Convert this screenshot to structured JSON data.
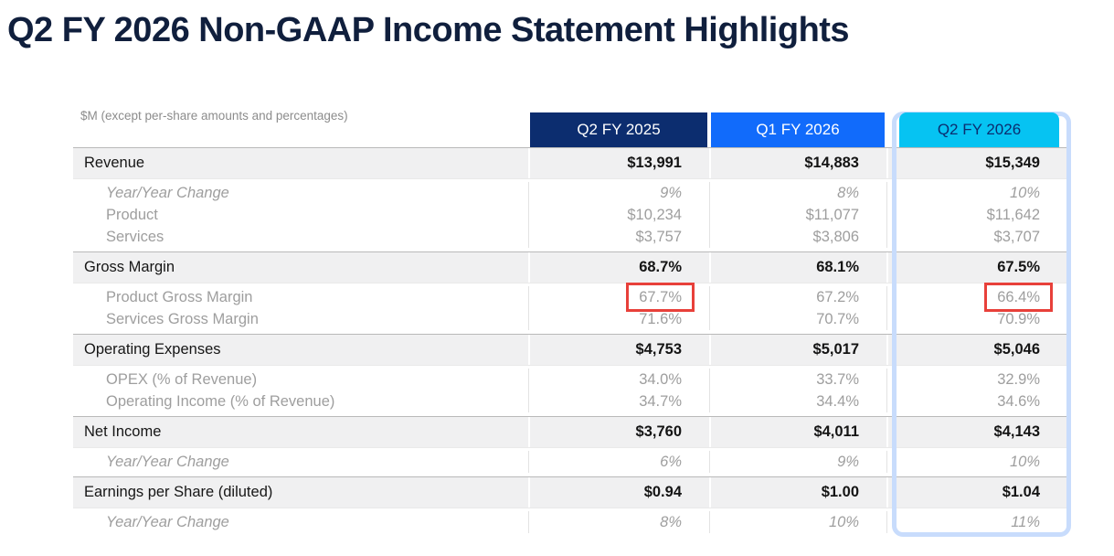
{
  "slide": {
    "title": "Q2 FY 2026 Non-GAAP Income Statement Highlights"
  },
  "table": {
    "units_note": "$M (except per-share amounts and percentages)",
    "columns": [
      {
        "label": "Q2 FY 2025",
        "highlighted": false
      },
      {
        "label": "Q1 FY 2026",
        "highlighted": false
      },
      {
        "label": "Q2 FY 2026",
        "highlighted": true
      }
    ],
    "rows": [
      {
        "type": "main",
        "label": "Revenue",
        "values": [
          "$13,991",
          "$14,883",
          "$15,349"
        ]
      },
      {
        "type": "sub",
        "lines": [
          {
            "label": "Year/Year Change",
            "style": "italic",
            "values": [
              "9%",
              "8%",
              "10%"
            ]
          },
          {
            "label": "Product",
            "values": [
              "$10,234",
              "$11,077",
              "$11,642"
            ]
          },
          {
            "label": "Services",
            "values": [
              "$3,757",
              "$3,806",
              "$3,707"
            ]
          }
        ]
      },
      {
        "type": "main",
        "label": "Gross Margin",
        "values": [
          "68.7%",
          "68.1%",
          "67.5%"
        ]
      },
      {
        "type": "sub",
        "lines": [
          {
            "label": "Product Gross Margin",
            "values": [
              "67.7%",
              "67.2%",
              "66.4%"
            ],
            "red_boxed_columns": [
              0,
              2
            ]
          },
          {
            "label": "Services Gross Margin",
            "values": [
              "71.6%",
              "70.7%",
              "70.9%"
            ]
          }
        ]
      },
      {
        "type": "main",
        "label": "Operating Expenses",
        "values": [
          "$4,753",
          "$5,017",
          "$5,046"
        ]
      },
      {
        "type": "sub",
        "lines": [
          {
            "label": "OPEX (% of Revenue)",
            "values": [
              "34.0%",
              "33.7%",
              "32.9%"
            ]
          },
          {
            "label": "Operating Income (% of Revenue)",
            "values": [
              "34.7%",
              "34.4%",
              "34.6%"
            ]
          }
        ]
      },
      {
        "type": "main",
        "label": "Net Income",
        "values": [
          "$3,760",
          "$4,011",
          "$4,143"
        ]
      },
      {
        "type": "sub",
        "lines": [
          {
            "label": "Year/Year Change",
            "style": "italic",
            "values": [
              "6%",
              "9%",
              "10%"
            ]
          }
        ]
      },
      {
        "type": "main",
        "label": "Earnings per Share (diluted)",
        "values": [
          "$0.94",
          "$1.00",
          "$1.04"
        ]
      },
      {
        "type": "sub",
        "lines": [
          {
            "label": "Year/Year Change",
            "style": "italic",
            "values": [
              "8%",
              "10%",
              "11%"
            ]
          }
        ]
      }
    ]
  },
  "annotations": {
    "red_boxes": [
      {
        "row": "Product Gross Margin",
        "column": "Q2 FY 2025",
        "value": "67.7%"
      },
      {
        "row": "Product Gross Margin",
        "column": "Q2 FY 2026",
        "value": "66.4%"
      }
    ]
  },
  "colors": {
    "title_text": "#101f3d",
    "header_q2_fy_2025_bg": "#0c2d6f",
    "header_q1_fy_2026_bg": "#116bfb",
    "header_q2_fy_2026_bg": "#06c3f2",
    "header_q2_fy_2026_text": "#0c2d6f",
    "highlight_column_border": "#c8dcfc",
    "red_annotation_box": "#e8403a",
    "main_row_bg": "#f0f0f1",
    "muted_text": "#9e9e9e"
  }
}
